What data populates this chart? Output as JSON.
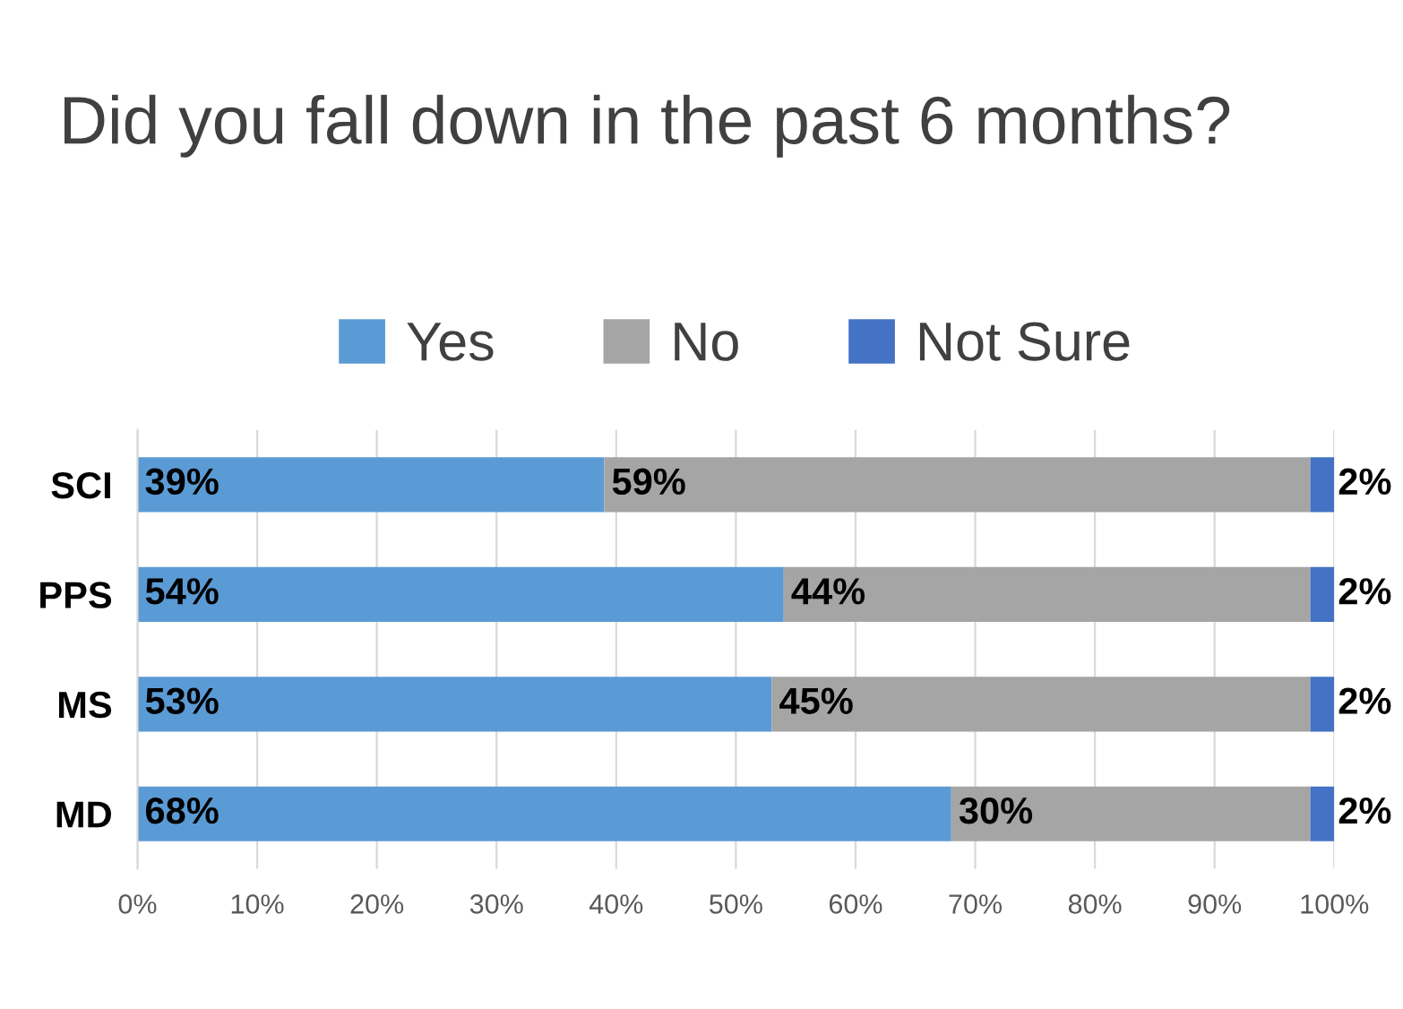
{
  "chart_data": {
    "type": "bar",
    "orientation": "horizontal",
    "stacked": true,
    "title": "Did you fall down in the past 6 months?",
    "categories": [
      "SCI",
      "PPS",
      "MS",
      "MD"
    ],
    "series": [
      {
        "name": "Yes",
        "color": "#5b9bd5",
        "values": [
          39,
          54,
          53,
          68
        ],
        "value_labels": [
          "39%",
          "54%",
          "53%",
          "68%"
        ]
      },
      {
        "name": "No",
        "color": "#a5a5a5",
        "values": [
          59,
          44,
          45,
          30
        ],
        "value_labels": [
          "59%",
          "44%",
          "45%",
          "30%"
        ]
      },
      {
        "name": "Not Sure",
        "color": "#4472c4",
        "values": [
          2,
          2,
          2,
          2
        ],
        "value_labels": [
          "2%",
          "2%",
          "2%",
          "2%"
        ]
      }
    ],
    "xlim": [
      0,
      100
    ],
    "xticks": [
      {
        "value": 0,
        "label": "0%"
      },
      {
        "value": 10,
        "label": "10%"
      },
      {
        "value": 20,
        "label": "20%"
      },
      {
        "value": 30,
        "label": "30%"
      },
      {
        "value": 40,
        "label": "40%"
      },
      {
        "value": 50,
        "label": "50%"
      },
      {
        "value": 60,
        "label": "60%"
      },
      {
        "value": 70,
        "label": "70%"
      },
      {
        "value": 80,
        "label": "80%"
      },
      {
        "value": 90,
        "label": "90%"
      },
      {
        "value": 100,
        "label": "100%"
      }
    ],
    "grid": "x",
    "legend": "top"
  }
}
